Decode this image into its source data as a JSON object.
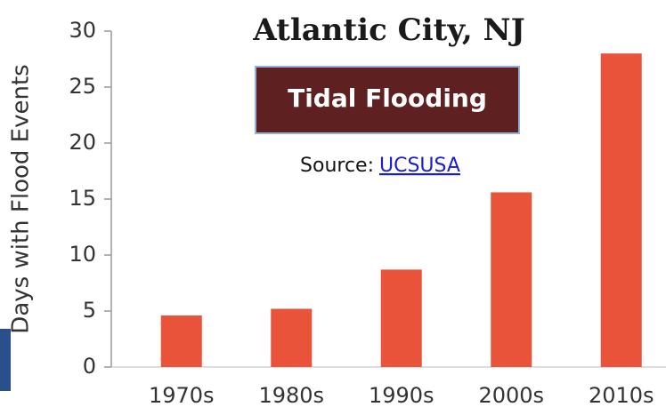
{
  "chart_data": {
    "type": "bar",
    "title": "Atlantic City, NJ",
    "box_label": "Tidal Flooding",
    "source_text": "Source:",
    "source_link": "UCSUSA",
    "y_label": "Days with Flood Events",
    "categories": [
      "1970s",
      "1980s",
      "1990s",
      "2000s",
      "2010s"
    ],
    "values": [
      4.6,
      5.2,
      8.7,
      15.6,
      28.0
    ],
    "color": "#e8533a",
    "ylim": [
      0,
      30
    ],
    "yticks": [
      0,
      5,
      10,
      15,
      20,
      25,
      30
    ],
    "grid": false
  }
}
